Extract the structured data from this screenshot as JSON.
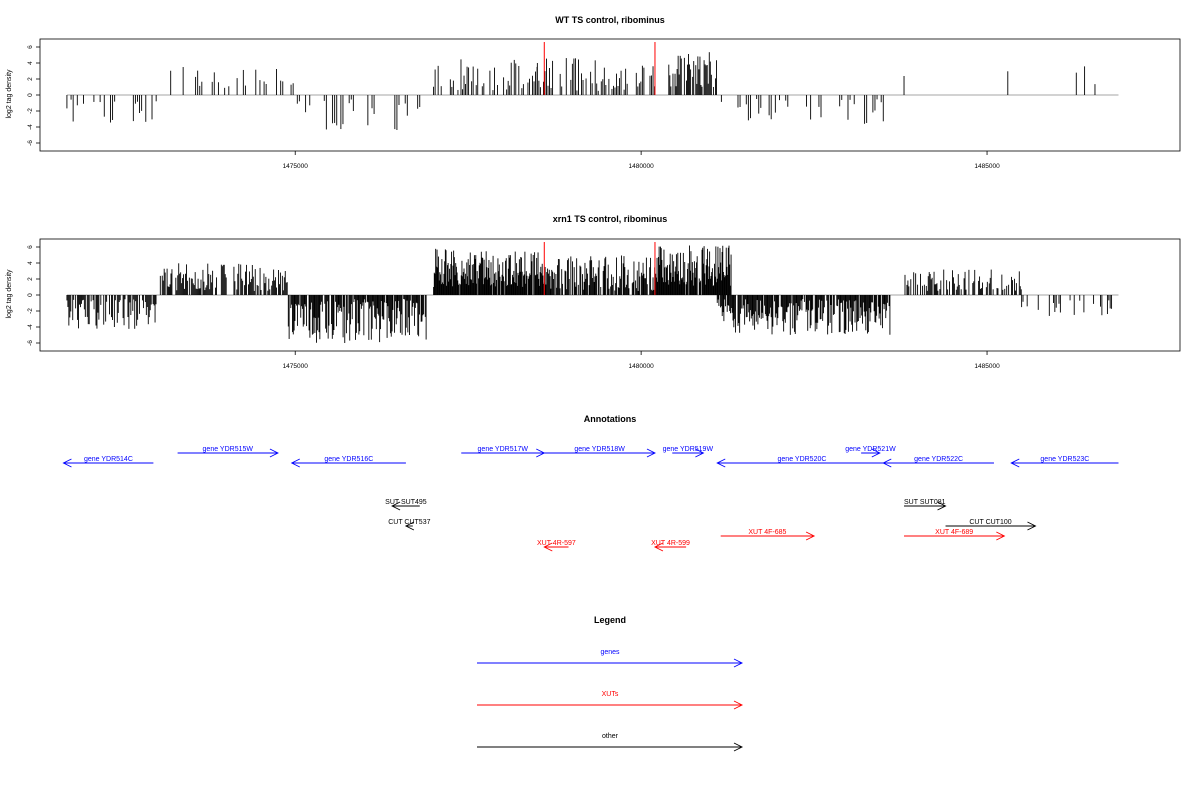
{
  "colors": {
    "genes": "#0000ff",
    "xuts": "#ff0000",
    "other": "#000000",
    "bars": "#000000",
    "markers": "#ff0000",
    "axis": "#000000"
  },
  "chart_data": [
    {
      "type": "bar",
      "title": "WT TS control, ribominus",
      "ylabel": "log2 tag density",
      "xlim": [
        1471600,
        1487500
      ],
      "ylim": [
        -7,
        7
      ],
      "yticks": [
        -6,
        -4,
        -2,
        0,
        2,
        4,
        6
      ],
      "xticks": [
        1475000,
        1480000,
        1485000
      ],
      "markers": [
        1478600,
        1480200
      ],
      "grid": false,
      "regions": [
        {
          "x": [
            1471700,
            1473000
          ],
          "sign": -1,
          "amp": [
            0.5,
            3.5
          ],
          "density": 0.45,
          "step": 30
        },
        {
          "x": [
            1473050,
            1475000
          ],
          "sign": 1,
          "amp": [
            0.8,
            3.5
          ],
          "density": 0.3,
          "step": 30
        },
        {
          "x": [
            1475000,
            1476800
          ],
          "sign": -1,
          "amp": [
            0.5,
            4.5
          ],
          "density": 0.45,
          "step": 30
        },
        {
          "x": [
            1477000,
            1478500
          ],
          "sign": 1,
          "amp": [
            0.5,
            4.6
          ],
          "density": 0.6,
          "step": 22
        },
        {
          "x": [
            1478500,
            1480200
          ],
          "sign": 1,
          "amp": [
            0.5,
            4.8
          ],
          "density": 0.6,
          "step": 22
        },
        {
          "x": [
            1480400,
            1481100
          ],
          "sign": 1,
          "amp": [
            1.0,
            5.6
          ],
          "density": 0.85,
          "step": 15
        },
        {
          "x": [
            1481100,
            1483500
          ],
          "sign": -1,
          "amp": [
            0.5,
            4.0
          ],
          "density": 0.35,
          "step": 30
        },
        {
          "x": [
            1483800,
            1486900
          ],
          "sign": 1,
          "amp": [
            0.5,
            3.8
          ],
          "density": 0.12,
          "step": 30
        }
      ]
    },
    {
      "type": "bar",
      "title": "xrn1 TS control, ribominus",
      "ylabel": "log2 tag density",
      "xlim": [
        1471600,
        1487500
      ],
      "ylim": [
        -7,
        7
      ],
      "yticks": [
        -6,
        -4,
        -2,
        0,
        2,
        4,
        6
      ],
      "xticks": [
        1475000,
        1480000,
        1485000
      ],
      "markers": [
        1478600,
        1480200
      ],
      "grid": false,
      "regions": [
        {
          "x": [
            1471700,
            1473000
          ],
          "sign": -1,
          "amp": [
            0.5,
            4.5
          ],
          "density": 0.8,
          "step": 14
        },
        {
          "x": [
            1473050,
            1474900
          ],
          "sign": 1,
          "amp": [
            0.5,
            4.0
          ],
          "density": 0.75,
          "step": 14
        },
        {
          "x": [
            1474900,
            1476900
          ],
          "sign": -1,
          "amp": [
            0.5,
            6.0
          ],
          "density": 0.9,
          "step": 12
        },
        {
          "x": [
            1477000,
            1478600
          ],
          "sign": 1,
          "amp": [
            1.0,
            5.8
          ],
          "density": 0.95,
          "step": 10
        },
        {
          "x": [
            1478600,
            1480200
          ],
          "sign": 1,
          "amp": [
            0.5,
            5.0
          ],
          "density": 0.85,
          "step": 12
        },
        {
          "x": [
            1480200,
            1481300
          ],
          "sign": 1,
          "amp": [
            1.0,
            6.2
          ],
          "density": 0.95,
          "step": 10
        },
        {
          "x": [
            1481100,
            1483600
          ],
          "sign": -1,
          "amp": [
            0.5,
            5.0
          ],
          "density": 0.9,
          "step": 12
        },
        {
          "x": [
            1483800,
            1485500
          ],
          "sign": 1,
          "amp": [
            0.5,
            3.2
          ],
          "density": 0.55,
          "step": 14
        },
        {
          "x": [
            1485500,
            1486900
          ],
          "sign": -1,
          "amp": [
            0.5,
            2.8
          ],
          "density": 0.35,
          "step": 20
        }
      ]
    }
  ],
  "annotations": {
    "title": "Annotations",
    "genes": [
      {
        "label": "gene YDR514C",
        "start": 1472950,
        "end": 1471650,
        "row": 0
      },
      {
        "label": "gene YDR515W",
        "start": 1473300,
        "end": 1474750,
        "row": 1
      },
      {
        "label": "gene YDR516C",
        "start": 1476600,
        "end": 1474950,
        "row": 0
      },
      {
        "label": "gene YDR517W",
        "start": 1477400,
        "end": 1478600,
        "row": 1
      },
      {
        "label": "gene YDR518W",
        "start": 1478600,
        "end": 1480200,
        "row": 1
      },
      {
        "label": "gene YDR519W",
        "start": 1480450,
        "end": 1480900,
        "row": 1
      },
      {
        "label": "gene YDR520C",
        "start": 1483550,
        "end": 1481100,
        "row": 0
      },
      {
        "label": "gene YDR521W",
        "start": 1483180,
        "end": 1483450,
        "row": 1
      },
      {
        "label": "gene YDR522C",
        "start": 1485100,
        "end": 1483500,
        "row": 0
      },
      {
        "label": "gene YDR523C",
        "start": 1486900,
        "end": 1485350,
        "row": 0
      }
    ],
    "other": [
      {
        "label": "SUT SUT495",
        "start": 1476800,
        "end": 1476400,
        "row": 2
      },
      {
        "label": "CUT CUT537",
        "start": 1476700,
        "end": 1476600,
        "row": 3
      },
      {
        "label": "SUT SUT081",
        "start": 1483800,
        "end": 1484400,
        "row": 2
      },
      {
        "label": "CUT CUT100",
        "start": 1484400,
        "end": 1485700,
        "row": 3
      }
    ],
    "xuts": [
      {
        "label": "XUT 4R-597",
        "start": 1478950,
        "end": 1478600,
        "row": 5
      },
      {
        "label": "XUT 4R-599",
        "start": 1480650,
        "end": 1480200,
        "row": 5
      },
      {
        "label": "XUT 4F-685",
        "start": 1481150,
        "end": 1482500,
        "row": 4
      },
      {
        "label": "XUT 4F-689",
        "start": 1483800,
        "end": 1485250,
        "row": 4
      }
    ]
  },
  "legend": {
    "title": "Legend",
    "items": [
      {
        "label": "genes",
        "color": "#0000ff"
      },
      {
        "label": "XUTs",
        "color": "#ff0000"
      },
      {
        "label": "other",
        "color": "#000000"
      }
    ]
  }
}
